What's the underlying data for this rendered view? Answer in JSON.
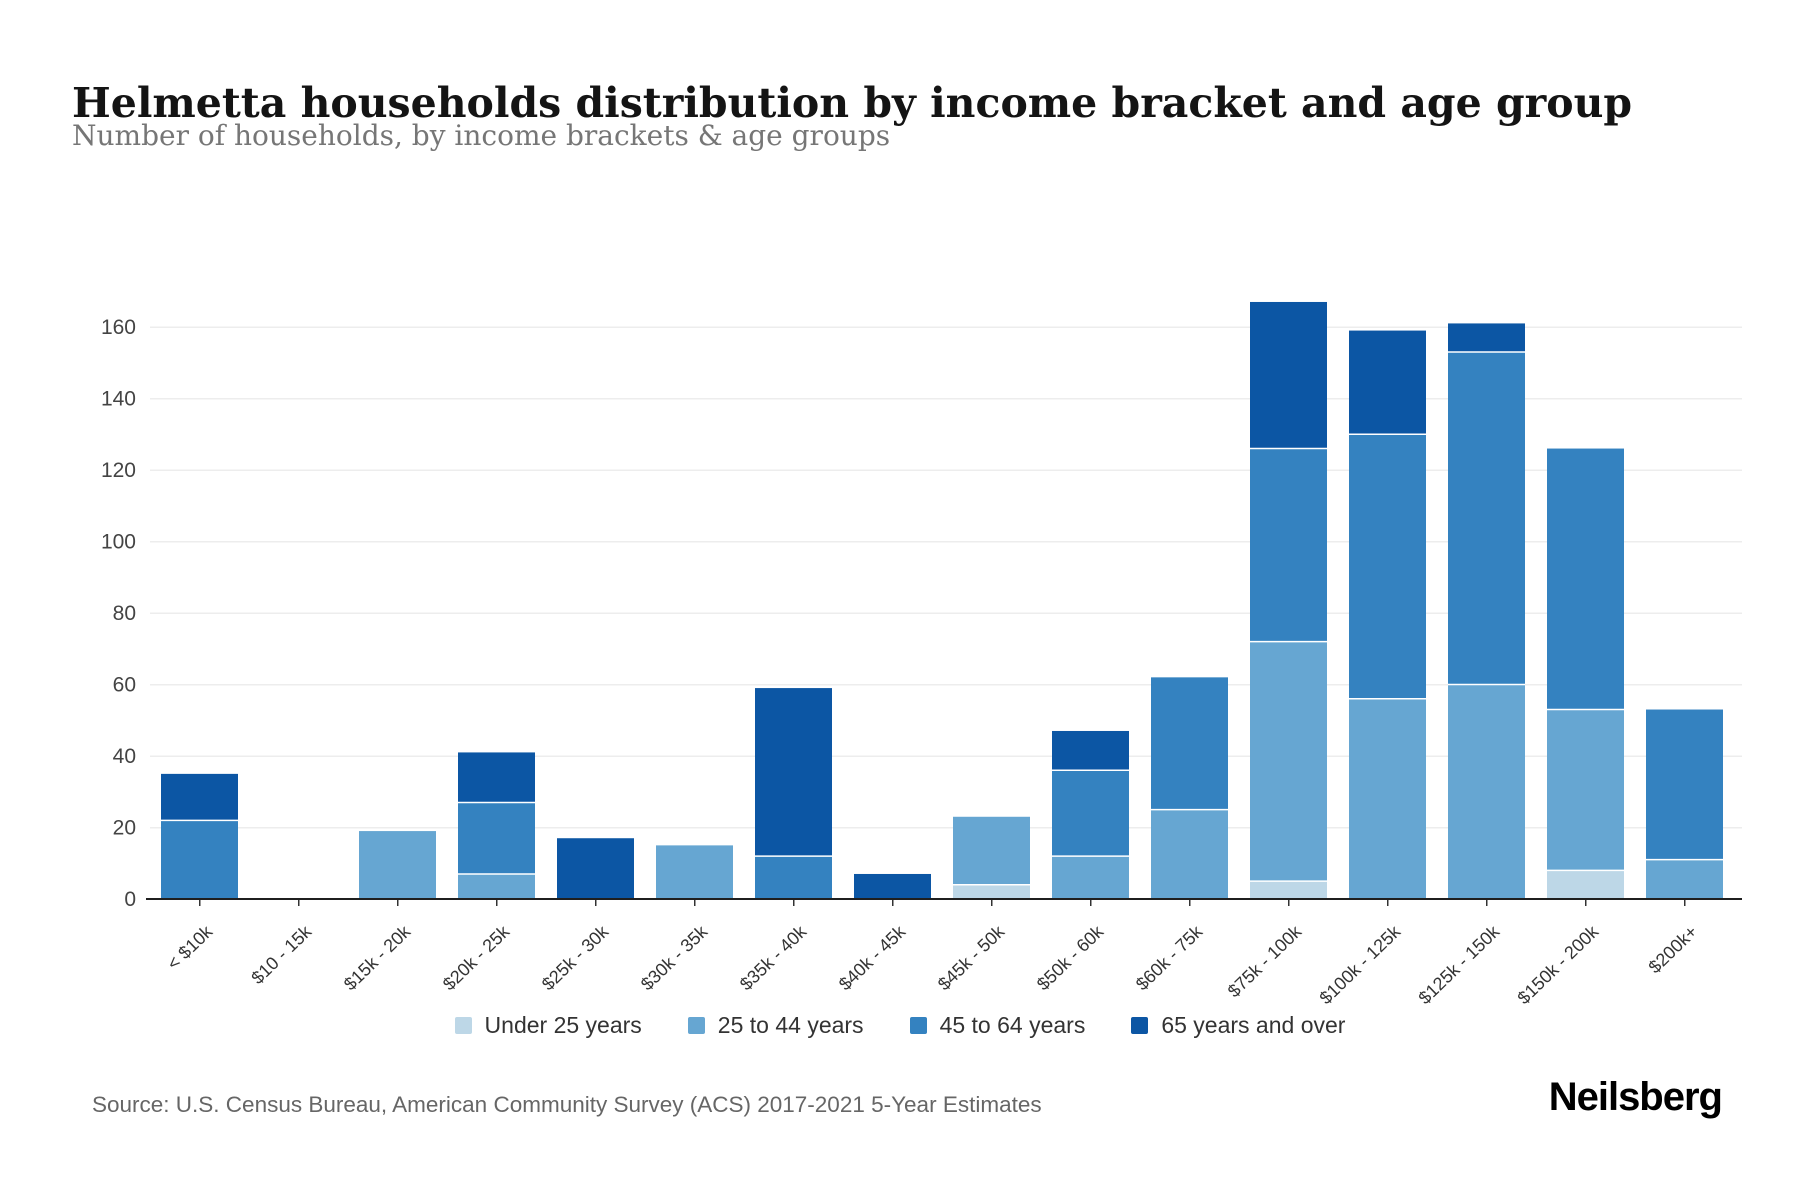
{
  "header": {
    "title": "Helmetta households distribution by income bracket and age group",
    "subtitle": "Number of households, by income brackets & age groups"
  },
  "chart_data": {
    "type": "bar",
    "stacked": true,
    "title": "Helmetta households distribution by income bracket and age group",
    "subtitle": "Number of households, by income brackets & age groups",
    "xlabel": "",
    "ylabel": "",
    "ylim": [
      0,
      160
    ],
    "ytick_step": 20,
    "grid": true,
    "legend_position": "bottom",
    "categories": [
      "< $10k",
      "$10 - 15k",
      "$15k - 20k",
      "$20k - 25k",
      "$25k - 30k",
      "$30k - 35k",
      "$35k - 40k",
      "$40k - 45k",
      "$45k - 50k",
      "$50k - 60k",
      "$60k - 75k",
      "$75k - 100k",
      "$100k - 125k",
      "$125k - 150k",
      "$150k - 200k",
      "$200k+"
    ],
    "series": [
      {
        "name": "Under 25 years",
        "color": "#bdd7e7",
        "values": [
          0,
          0,
          0,
          0,
          0,
          0,
          0,
          0,
          4,
          0,
          0,
          5,
          0,
          0,
          8,
          0
        ]
      },
      {
        "name": "25 to 44 years",
        "color": "#66a6d2",
        "values": [
          0,
          0,
          19,
          7,
          0,
          15,
          0,
          0,
          19,
          12,
          25,
          67,
          56,
          60,
          45,
          11
        ]
      },
      {
        "name": "45 to 64 years",
        "color": "#3482c0",
        "values": [
          22,
          0,
          0,
          20,
          0,
          0,
          12,
          0,
          0,
          24,
          37,
          54,
          74,
          93,
          73,
          42
        ]
      },
      {
        "name": "65 years and over",
        "color": "#0c56a4",
        "values": [
          13,
          0,
          0,
          14,
          17,
          0,
          47,
          7,
          0,
          11,
          0,
          41,
          29,
          8,
          0,
          0
        ]
      }
    ],
    "totals": [
      35,
      0,
      19,
      41,
      17,
      15,
      59,
      7,
      23,
      47,
      62,
      167,
      159,
      161,
      126,
      53
    ]
  },
  "footer": {
    "source": "Source: U.S. Census Bureau, American Community Survey (ACS) 2017-2021 5-Year Estimates",
    "brand": "Neilsberg"
  }
}
